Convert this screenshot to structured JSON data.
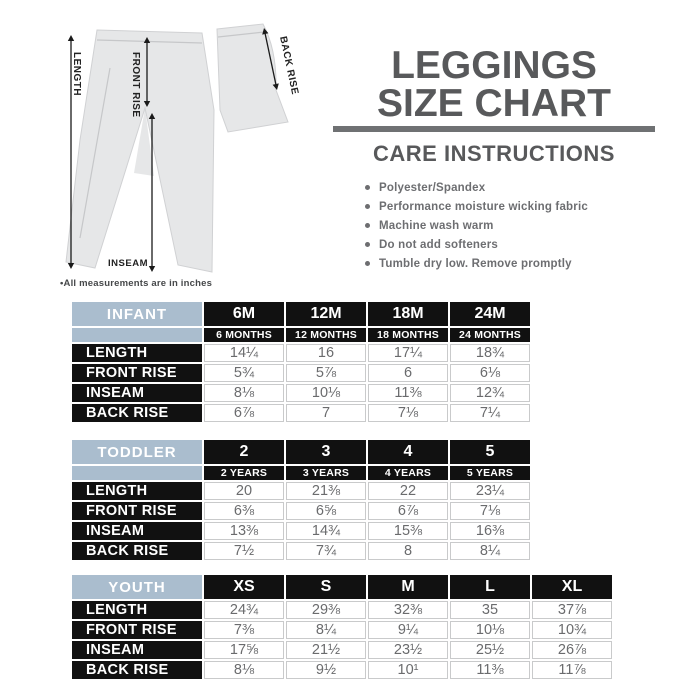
{
  "diagram": {
    "labels": {
      "length": "LENGTH",
      "front_rise": "FRONT RISE",
      "inseam": "INSEAM",
      "back_rise": "BACK RISE"
    },
    "note": "•All measurements are in inches"
  },
  "header": {
    "title_line1": "LEGGINGS",
    "title_line2": "SIZE CHART",
    "care_title": "CARE INSTRUCTIONS",
    "care_items": [
      "Polyester/Spandex",
      "Performance moisture wicking fabric",
      "Machine wash warm",
      "Do not add softeners",
      "Tumble dry low. Remove promptly"
    ]
  },
  "colors": {
    "title_gray": "#58595b",
    "divider_gray": "#6f7173",
    "body_text_gray": "#6d6e71",
    "table_header_blue": "#aabdce",
    "table_black": "#111111",
    "cell_border_gray": "#c9cacb",
    "fabric_gray": "#e6e7e8"
  },
  "tables": [
    {
      "name": "INFANT",
      "columns": [
        "6M",
        "12M",
        "18M",
        "24M"
      ],
      "subcolumns": [
        "6 MONTHS",
        "12 MONTHS",
        "18 MONTHS",
        "24 MONTHS"
      ],
      "rows": [
        {
          "label": "LENGTH",
          "values": [
            "14¼",
            "16",
            "17¼",
            "18¾"
          ]
        },
        {
          "label": "FRONT RISE",
          "values": [
            "5¾",
            "5⅞",
            "6",
            "6⅛"
          ]
        },
        {
          "label": "INSEAM",
          "values": [
            "8⅛",
            "10⅛",
            "11⅜",
            "12¾"
          ]
        },
        {
          "label": "BACK RISE",
          "values": [
            "6⅞",
            "7",
            "7⅛",
            "7¼"
          ]
        }
      ]
    },
    {
      "name": "TODDLER",
      "columns": [
        "2",
        "3",
        "4",
        "5"
      ],
      "subcolumns": [
        "2 YEARS",
        "3 YEARS",
        "4 YEARS",
        "5 YEARS"
      ],
      "rows": [
        {
          "label": "LENGTH",
          "values": [
            "20",
            "21⅜",
            "22",
            "23¼"
          ]
        },
        {
          "label": "FRONT RISE",
          "values": [
            "6⅜",
            "6⅝",
            "6⅞",
            "7⅛"
          ]
        },
        {
          "label": "INSEAM",
          "values": [
            "13⅜",
            "14¾",
            "15⅜",
            "16⅜"
          ]
        },
        {
          "label": "BACK RISE",
          "values": [
            "7½",
            "7¾",
            "8",
            "8¼"
          ]
        }
      ]
    },
    {
      "name": "YOUTH",
      "columns": [
        "XS",
        "S",
        "M",
        "L",
        "XL"
      ],
      "subcolumns": null,
      "rows": [
        {
          "label": "LENGTH",
          "values": [
            "24¾",
            "29⅜",
            "32⅜",
            "35",
            "37⅞"
          ]
        },
        {
          "label": "FRONT RISE",
          "values": [
            "7⅜",
            "8¼",
            "9¼",
            "10⅛",
            "10¾"
          ]
        },
        {
          "label": "INSEAM",
          "values": [
            "17⅝",
            "21½",
            "23½",
            "25½",
            "26⅞"
          ]
        },
        {
          "label": "BACK RISE",
          "values": [
            "8⅛",
            "9½",
            "10¹",
            "11⅜",
            "11⅞"
          ]
        }
      ]
    }
  ]
}
